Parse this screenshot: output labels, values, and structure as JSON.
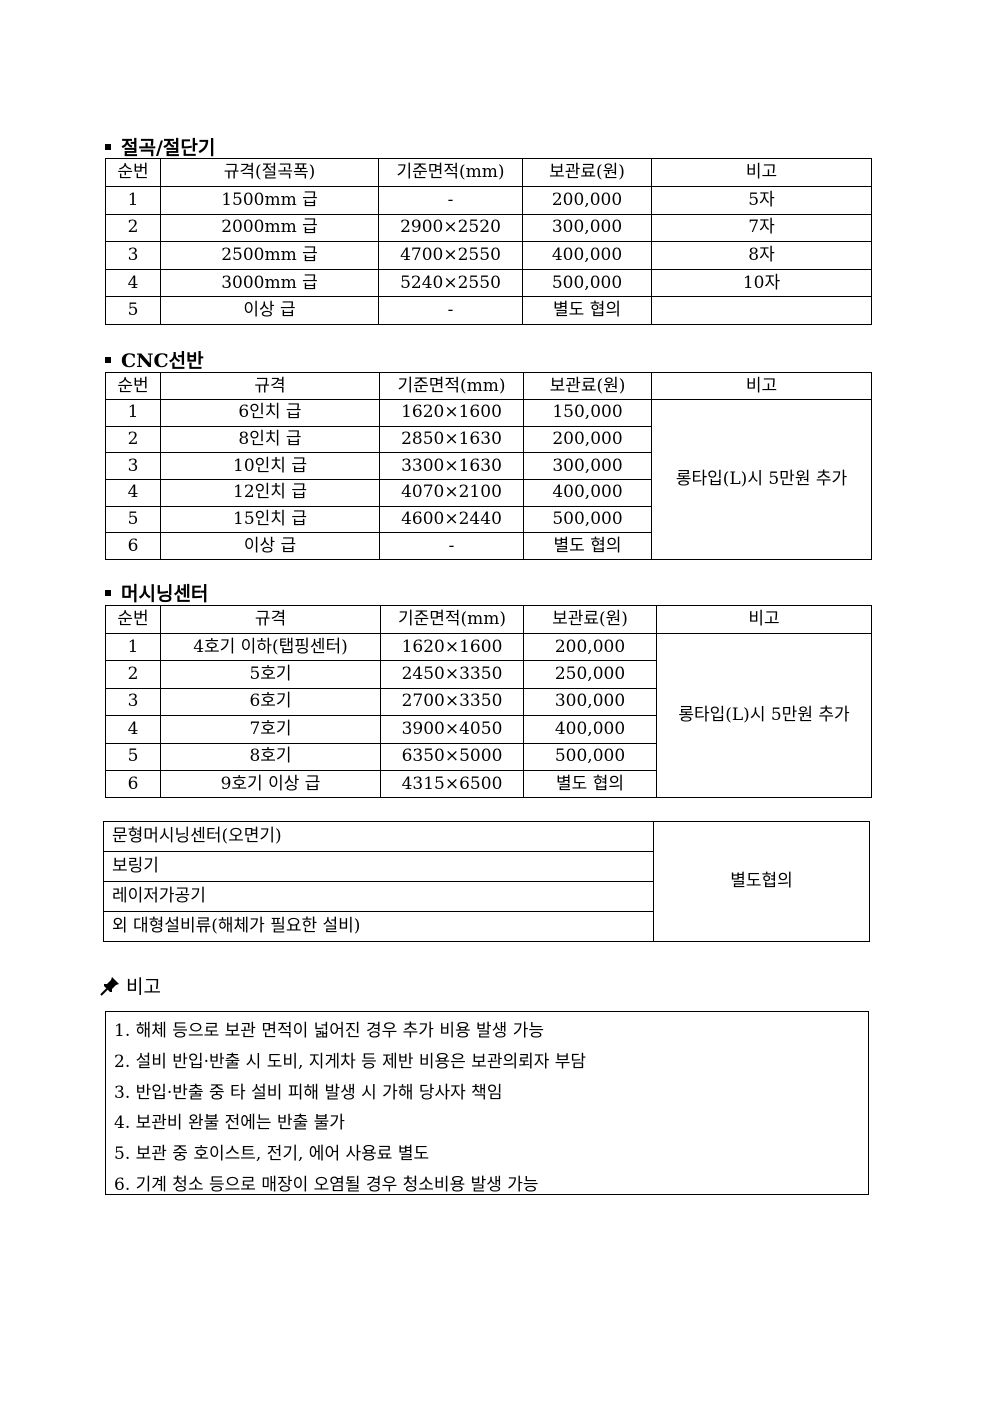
{
  "sections": [
    {
      "title": "절곡/절단기",
      "headers": [
        "순번",
        "규격(절곡폭)",
        "기준면적(mm)",
        "보관료(원)",
        "비고"
      ],
      "rows": [
        [
          "1",
          "1500mm 급",
          "-",
          "200,000",
          "5자"
        ],
        [
          "2",
          "2000mm 급",
          "2900×2520",
          "300,000",
          "7자"
        ],
        [
          "3",
          "2500mm 급",
          "4700×2550",
          "400,000",
          "8자"
        ],
        [
          "4",
          "3000mm 급",
          "5240×2550",
          "500,000",
          "10자"
        ],
        [
          "5",
          "이상 급",
          "-",
          "별도 협의",
          ""
        ]
      ]
    },
    {
      "title": "CNC선반",
      "headers": [
        "순번",
        "규격",
        "기준면적(mm)",
        "보관료(원)",
        "비고"
      ],
      "rows": [
        [
          "1",
          "6인치 급",
          "1620×1600",
          "150,000"
        ],
        [
          "2",
          "8인치 급",
          "2850×1630",
          "200,000"
        ],
        [
          "3",
          "10인치 급",
          "3300×1630",
          "300,000"
        ],
        [
          "4",
          "12인치 급",
          "4070×2100",
          "400,000"
        ],
        [
          "5",
          "15인치 급",
          "4600×2440",
          "500,000"
        ],
        [
          "6",
          "이상 급",
          "-",
          "별도 협의"
        ]
      ],
      "merged_note": "롱타입(L)시 5만원 추가"
    },
    {
      "title": "머시닝센터",
      "headers": [
        "순번",
        "규격",
        "기준면적(mm)",
        "보관료(원)",
        "비고"
      ],
      "rows": [
        [
          "1",
          "4호기 이하(탭핑센터)",
          "1620×1600",
          "200,000"
        ],
        [
          "2",
          "5호기",
          "2450×3350",
          "250,000"
        ],
        [
          "3",
          "6호기",
          "2700×3350",
          "300,000"
        ],
        [
          "4",
          "7호기",
          "3900×4050",
          "400,000"
        ],
        [
          "5",
          "8호기",
          "6350×5000",
          "500,000"
        ],
        [
          "6",
          "9호기 이상 급",
          "4315×6500",
          "별도 협의"
        ]
      ],
      "merged_note": "롱타입(L)시 5만원 추가"
    }
  ],
  "other_equipment": {
    "items": [
      "문형머시닝센터(오면기)",
      "보링기",
      "레이저가공기",
      "외 대형설비류(해체가 필요한 설비)"
    ],
    "note": "별도협의"
  },
  "notes": {
    "icon": "pushpin-icon",
    "title": "비고",
    "items": [
      "1. 해체 등으로 보관 면적이 넓어진 경우 추가 비용 발생 가능",
      "2. 설비 반입·반출 시 도비, 지게차 등 제반 비용은 보관의뢰자 부담",
      "3. 반입·반출 중 타 설비 피해 발생 시 가해 당사자 책임",
      "4. 보관비 완불 전에는 반출 불가",
      "5. 보관 중 호이스트, 전기, 에어 사용료 별도",
      "6. 기계 청소 등으로 매장이 오염될 경우 청소비용 발생 가능"
    ]
  }
}
